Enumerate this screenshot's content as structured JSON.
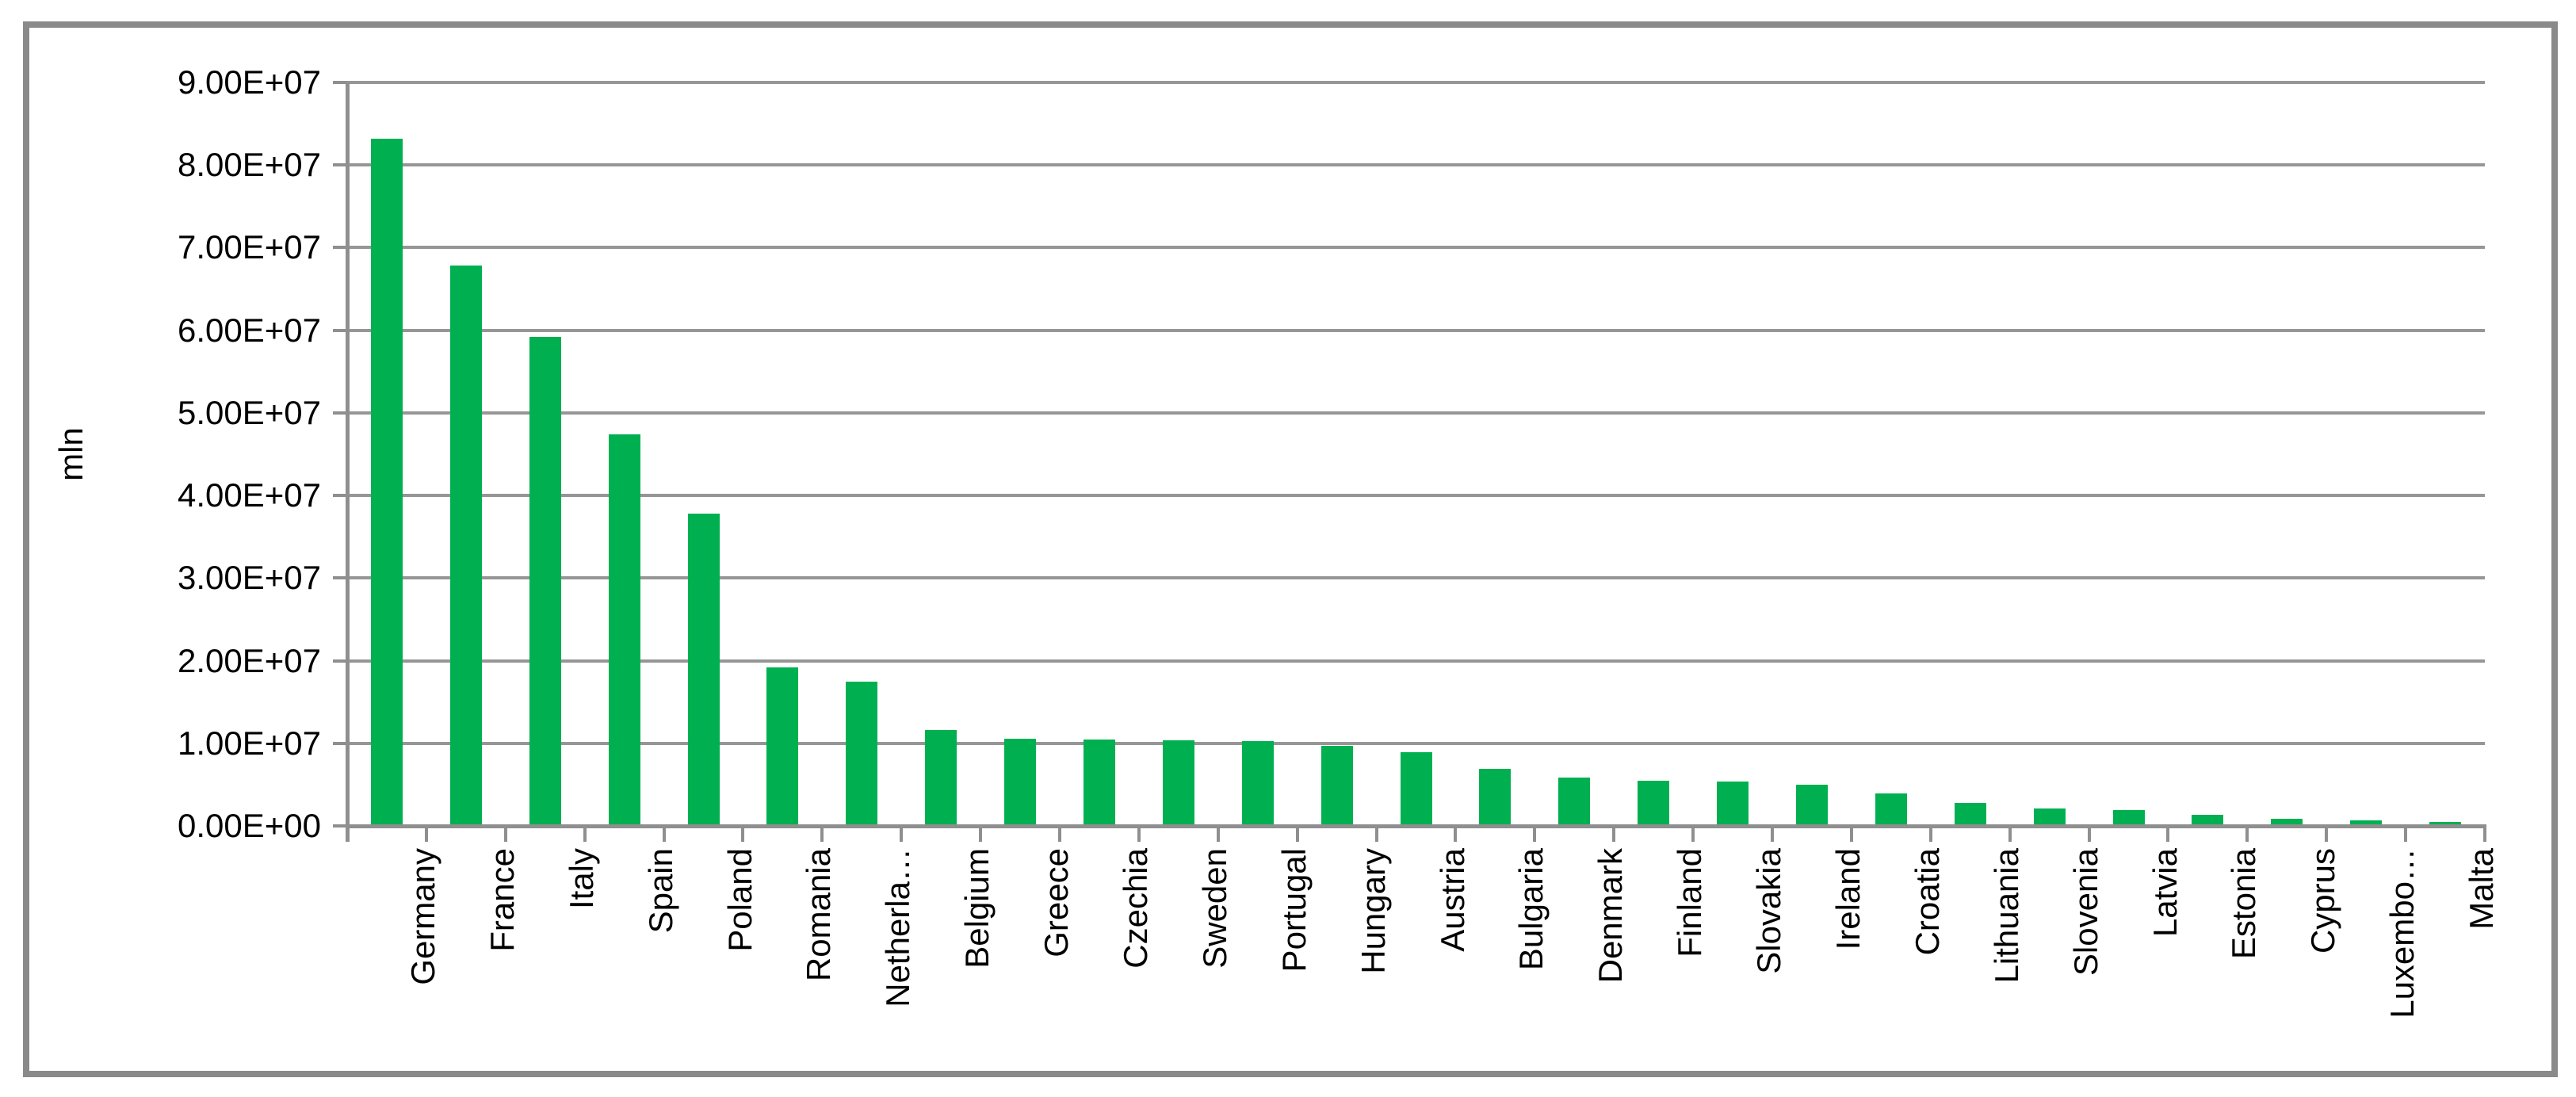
{
  "chart_data": {
    "type": "bar",
    "title": "",
    "ylabel": "mln",
    "categories": [
      "Germany",
      "France",
      "Italy",
      "Spain",
      "Poland",
      "Romania",
      "Netherla…",
      "Belgium",
      "Greece",
      "Czechia",
      "Sweden",
      "Portugal",
      "Hungary",
      "Austria",
      "Bulgaria",
      "Denmark",
      "Finland",
      "Slovakia",
      "Ireland",
      "Croatia",
      "Lithuania",
      "Slovenia",
      "Latvia",
      "Estonia",
      "Cyprus",
      "Luxembo…",
      "Malta"
    ],
    "values": [
      83200000,
      67800000,
      59200000,
      47400000,
      37800000,
      19200000,
      17500000,
      11600000,
      10600000,
      10500000,
      10400000,
      10300000,
      9700000,
      8900000,
      6900000,
      5900000,
      5500000,
      5400000,
      5000000,
      3900000,
      2800000,
      2100000,
      1900000,
      1300000,
      900000,
      640000,
      520000
    ],
    "y_ticks": [
      "0.00E+00",
      "1.00E+07",
      "2.00E+07",
      "3.00E+07",
      "4.00E+07",
      "5.00E+07",
      "6.00E+07",
      "7.00E+07",
      "8.00E+07",
      "9.00E+07"
    ],
    "ylim": [
      0,
      90000000
    ],
    "grid": true,
    "legend": false,
    "bar_orientation": "vertical",
    "x_label_rotation_degrees": 90,
    "colors": {
      "bar": "#00B050",
      "gridline": "#969696",
      "axis": "#8F8F8F",
      "frame_border": "#8A8A8A",
      "text": "#000000",
      "background": "#FFFFFF"
    }
  }
}
